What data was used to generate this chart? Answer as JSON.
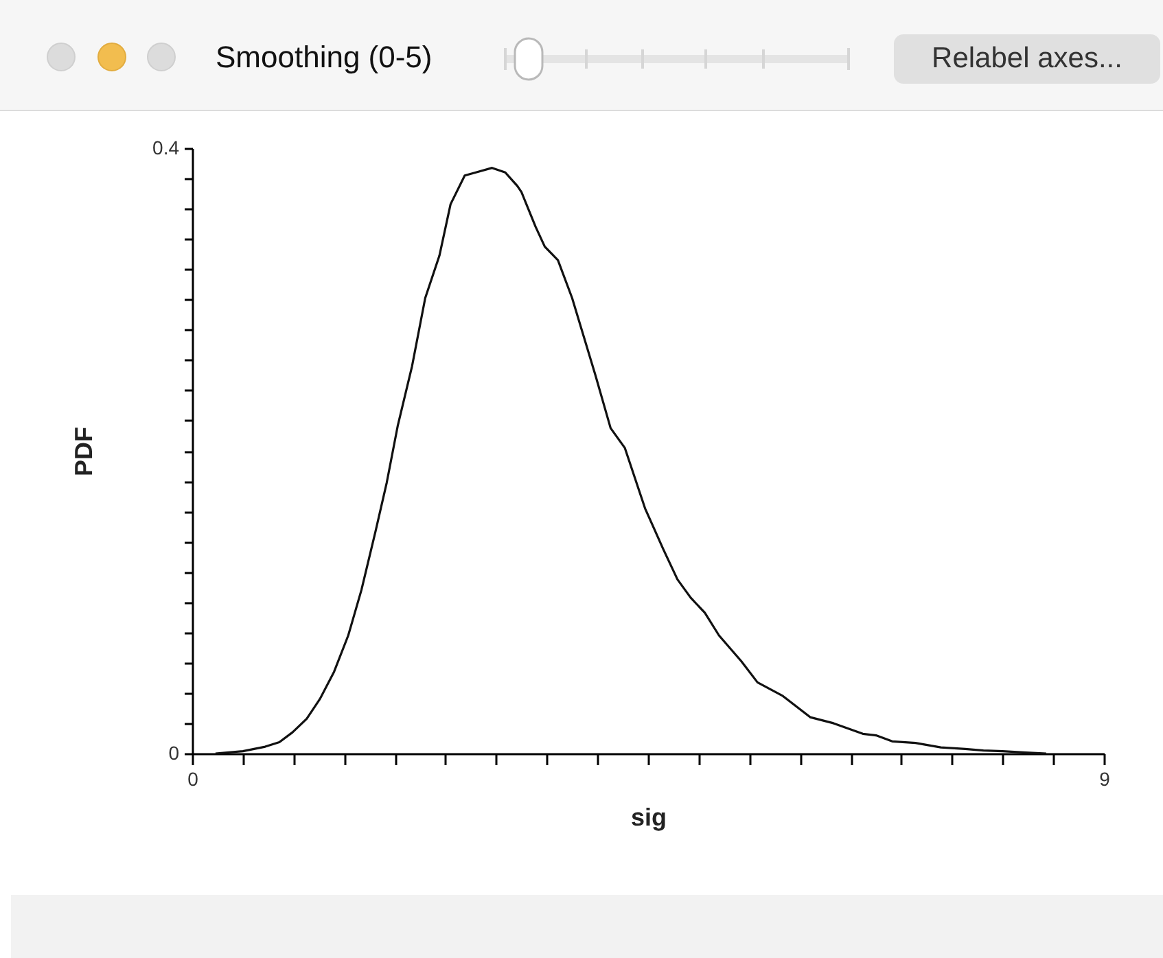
{
  "chart_data": {
    "type": "line",
    "xlabel": "sig",
    "ylabel": "PDF",
    "color": "#111111",
    "annotations": [
      "Smoothing (0-5)",
      "Relabel axes..."
    ],
    "x": [
      0.23,
      0.5,
      0.72,
      0.86,
      0.99,
      1.13,
      1.26,
      1.4,
      1.54,
      1.67,
      1.81,
      1.92,
      2.03,
      2.17,
      2.3,
      2.44,
      2.55,
      2.69,
      2.8,
      2.96,
      3.09,
      3.21,
      3.25,
      3.39,
      3.48,
      3.61,
      3.75,
      3.98,
      4.13,
      4.27,
      4.47,
      4.65,
      4.79,
      4.92,
      5.06,
      5.2,
      5.42,
      5.58,
      5.83,
      6.1,
      6.33,
      6.62,
      6.75,
      6.91,
      7.14,
      7.39,
      7.63,
      7.81,
      8.0,
      8.23,
      8.43
    ],
    "values": [
      0.0,
      0.0015,
      0.0045,
      0.0075,
      0.014,
      0.023,
      0.036,
      0.054,
      0.078,
      0.108,
      0.147,
      0.179,
      0.217,
      0.256,
      0.301,
      0.329,
      0.363,
      0.382,
      0.384,
      0.387,
      0.384,
      0.375,
      0.371,
      0.348,
      0.335,
      0.326,
      0.301,
      0.25,
      0.215,
      0.202,
      0.162,
      0.135,
      0.115,
      0.103,
      0.093,
      0.078,
      0.061,
      0.047,
      0.038,
      0.024,
      0.02,
      0.013,
      0.012,
      0.008,
      0.007,
      0.004,
      0.003,
      0.002,
      0.0015,
      0.0006,
      0.0
    ],
    "xlim": [
      0,
      9
    ],
    "ylim": [
      0,
      0.4
    ],
    "xticks": [
      0,
      {
        "value": 0.5,
        "label": null
      },
      {
        "value": 1,
        "label": null
      },
      {
        "value": 1.5,
        "label": null
      },
      {
        "value": 2,
        "label": null
      },
      {
        "value": 2.5,
        "label": null
      },
      {
        "value": 3,
        "label": null
      },
      {
        "value": 3.5,
        "label": null
      },
      {
        "value": 4,
        "label": null
      },
      {
        "value": 4.5,
        "label": null
      },
      {
        "value": 5,
        "label": null
      },
      {
        "value": 5.5,
        "label": null
      },
      {
        "value": 6,
        "label": null
      },
      {
        "value": 6.5,
        "label": null
      },
      {
        "value": 7,
        "label": null
      },
      {
        "value": 7.5,
        "label": null
      },
      {
        "value": 8,
        "label": null
      },
      {
        "value": 8.5,
        "label": null
      },
      9
    ],
    "yticks": [
      0,
      {
        "value": 0.02,
        "label": null
      },
      {
        "value": 0.04,
        "label": null
      },
      {
        "value": 0.06,
        "label": null
      },
      {
        "value": 0.08,
        "label": null
      },
      {
        "value": 0.1,
        "label": null
      },
      {
        "value": 0.12,
        "label": null
      },
      {
        "value": 0.14,
        "label": null
      },
      {
        "value": 0.16,
        "label": null
      },
      {
        "value": 0.18,
        "label": null
      },
      {
        "value": 0.2,
        "label": null
      },
      {
        "value": 0.22,
        "label": null
      },
      {
        "value": 0.24,
        "label": null
      },
      {
        "value": 0.26,
        "label": null
      },
      {
        "value": 0.28,
        "label": null
      },
      {
        "value": 0.3,
        "label": null
      },
      {
        "value": 0.32,
        "label": null
      },
      {
        "value": 0.34,
        "label": null
      },
      {
        "value": 0.36,
        "label": null
      },
      {
        "value": 0.38,
        "label": null
      },
      0.4
    ]
  }
}
